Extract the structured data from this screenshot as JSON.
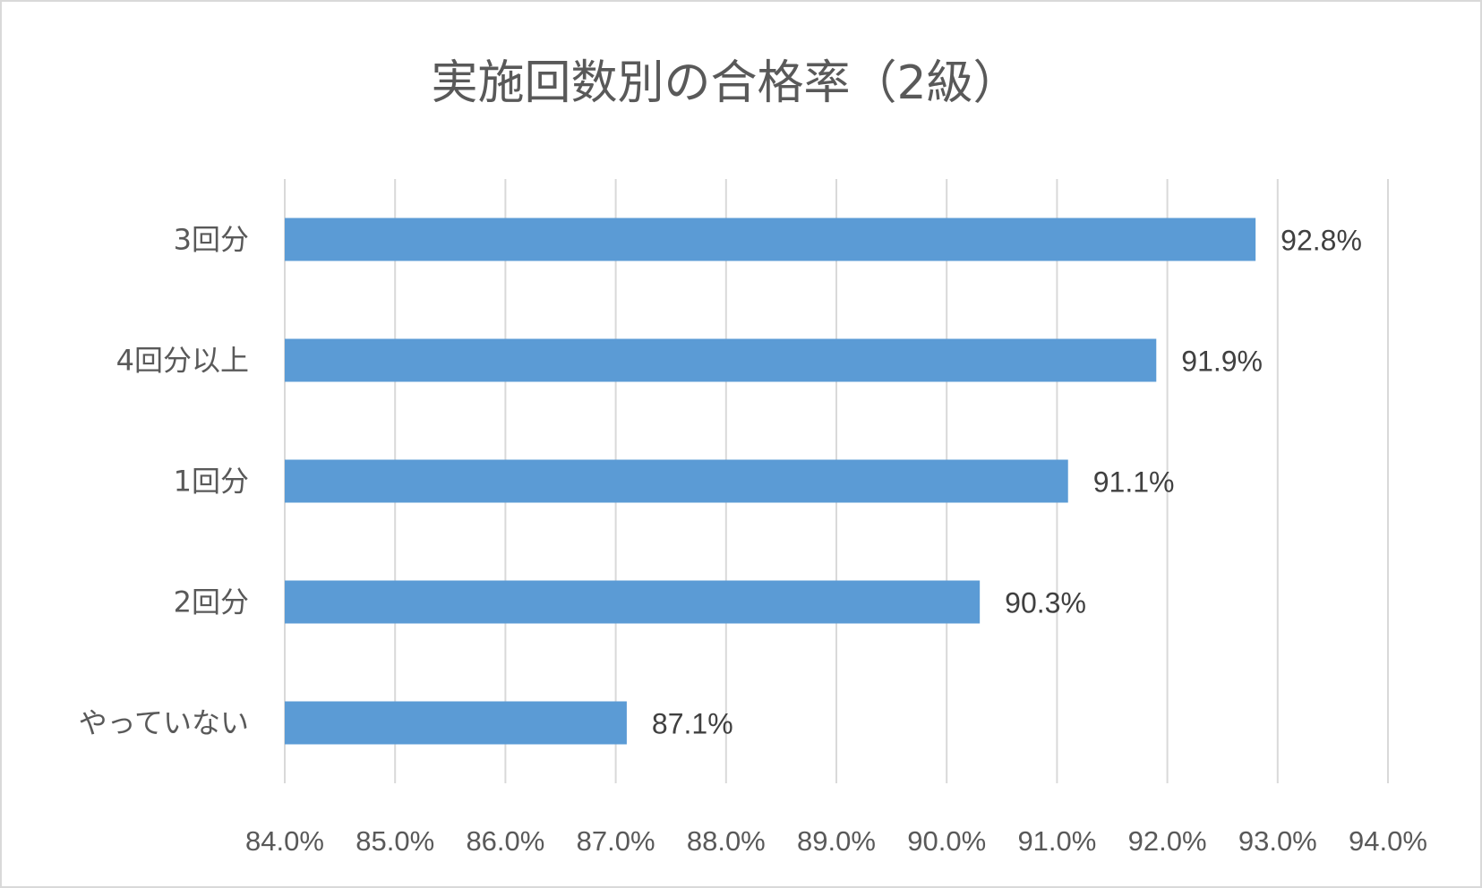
{
  "chart_data": {
    "type": "bar",
    "orientation": "horizontal",
    "title": "実施回数別の合格率（2級）",
    "categories": [
      "3回分",
      "4回分以上",
      "1回分",
      "2回分",
      "やっていない"
    ],
    "values": [
      92.8,
      91.9,
      91.1,
      90.3,
      87.1
    ],
    "data_labels": [
      "92.8%",
      "91.9%",
      "91.1%",
      "90.3%",
      "87.1%"
    ],
    "xlim": [
      84.0,
      94.0
    ],
    "x_ticks": [
      "84.0%",
      "85.0%",
      "86.0%",
      "87.0%",
      "88.0%",
      "89.0%",
      "90.0%",
      "91.0%",
      "92.0%",
      "93.0%",
      "94.0%"
    ],
    "grid": true,
    "legend": "none",
    "bar_color": "#5b9bd5"
  }
}
